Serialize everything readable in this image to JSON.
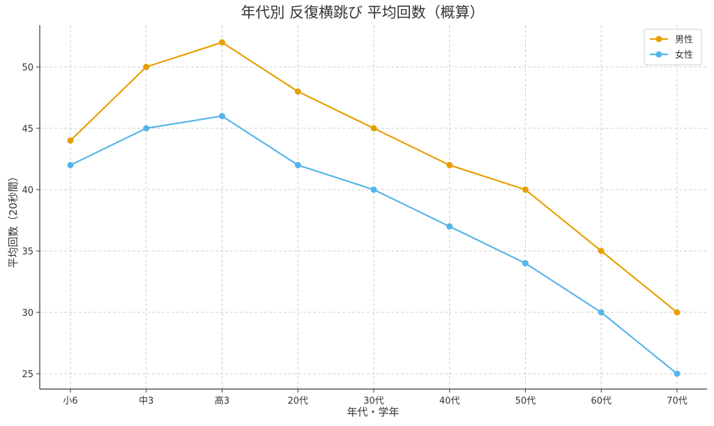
{
  "chart_data": {
    "type": "line",
    "title": "年代別 反復横跳び 平均回数（概算）",
    "xlabel": "年代・学年",
    "ylabel": "平均回数（20秒間）",
    "categories": [
      "小6",
      "中3",
      "高3",
      "20代",
      "30代",
      "40代",
      "50代",
      "60代",
      "70代"
    ],
    "y_ticks": [
      25,
      30,
      35,
      40,
      45,
      50
    ],
    "ylim": [
      24,
      53.2
    ],
    "grid": true,
    "legend_position": "top-right",
    "series": [
      {
        "name": "男性",
        "color": "#E69F00",
        "values": [
          44,
          50,
          52,
          48,
          45,
          42,
          40,
          35,
          30
        ]
      },
      {
        "name": "女性",
        "color": "#56B4E9",
        "values": [
          42,
          45,
          46,
          42,
          40,
          37,
          34,
          30,
          25
        ]
      }
    ]
  }
}
